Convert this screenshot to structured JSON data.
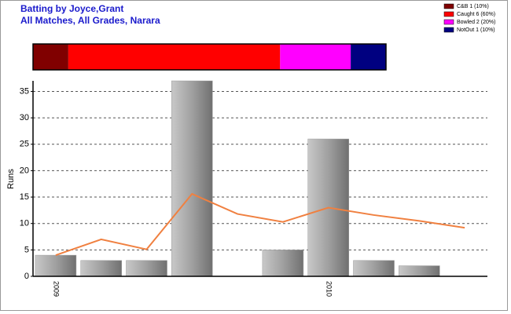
{
  "chart_data": [
    {
      "type": "stacked-hbar",
      "title": "Batting by Joyce,Grant",
      "subtitle": "All Matches, All Grades, Narara",
      "legend": "top-right",
      "series": [
        {
          "name": "C&B 1 (10%)",
          "color": "#800000",
          "values": [
            10
          ]
        },
        {
          "name": "Caught 6 (60%)",
          "color": "#ff0000",
          "values": [
            60
          ]
        },
        {
          "name": "Bowled 2 (20%)",
          "color": "#ff00ff",
          "values": [
            20
          ]
        },
        {
          "name": "NotOut 1 (10%)",
          "color": "#000080",
          "values": [
            10
          ]
        }
      ]
    },
    {
      "type": "bar",
      "ylabel": "Runs",
      "categories": [
        "2009",
        null,
        null,
        null,
        null,
        null,
        "2010",
        null,
        null,
        null
      ],
      "series": [
        {
          "type": "bar",
          "color": "#9a9a9a",
          "values": [
            4,
            3,
            3,
            37,
            0,
            5,
            26,
            3,
            2,
            0
          ]
        },
        {
          "type": "line",
          "color": "#f08040",
          "values": [
            4,
            7,
            5.1,
            15.6,
            11.8,
            10.3,
            13,
            11.6,
            10.5,
            9.2
          ]
        }
      ],
      "ylim": [
        0,
        37
      ],
      "yticks": [
        0,
        5,
        10,
        15,
        20,
        25,
        30,
        35
      ],
      "grid": true
    }
  ]
}
